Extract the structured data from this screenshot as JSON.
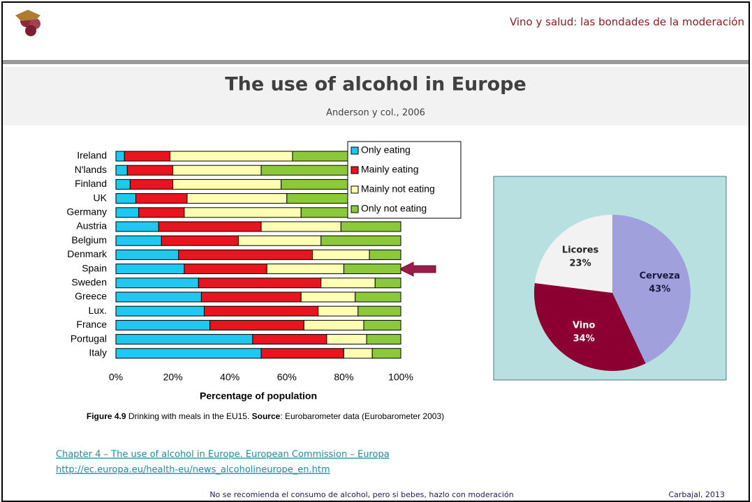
{
  "header": {
    "title": "Vino y salud: las bondades de la moderación"
  },
  "title": "The use of alcohol in Europe",
  "subtitle": "Anderson y col., 2006",
  "chart_data": [
    {
      "type": "bar",
      "orientation": "horizontal",
      "stacked": true,
      "categories": [
        "Ireland",
        "N'lands",
        "Finland",
        "UK",
        "Germany",
        "Austria",
        "Belgium",
        "Denmark",
        "Spain",
        "Sweden",
        "Greece",
        "Lux.",
        "France",
        "Portugal",
        "Italy"
      ],
      "series": [
        {
          "name": "Only eating",
          "color": "#1ec8f0",
          "values": [
            3,
            4,
            5,
            7,
            8,
            15,
            16,
            22,
            24,
            29,
            30,
            31,
            33,
            48,
            51
          ]
        },
        {
          "name": "Mainly eating",
          "color": "#e8141e",
          "values": [
            16,
            16,
            15,
            18,
            16,
            36,
            27,
            47,
            29,
            43,
            35,
            40,
            33,
            26,
            29
          ]
        },
        {
          "name": "Mainly not eating",
          "color": "#ffffb4",
          "values": [
            43,
            31,
            38,
            35,
            41,
            28,
            29,
            20,
            27,
            19,
            19,
            14,
            21,
            14,
            10
          ]
        },
        {
          "name": "Only not eating",
          "color": "#8cc83c",
          "values": [
            38,
            49,
            42,
            40,
            35,
            21,
            28,
            11,
            20,
            9,
            16,
            15,
            13,
            12,
            10
          ]
        }
      ],
      "xlim": [
        0,
        100
      ],
      "xticks": [
        {
          "value": 0,
          "label": "0%"
        },
        {
          "value": 20,
          "label": "20%"
        },
        {
          "value": 40,
          "label": "40%"
        },
        {
          "value": 60,
          "label": "60%"
        },
        {
          "value": 80,
          "label": "80%"
        },
        {
          "value": 100,
          "label": "100%"
        }
      ],
      "xlabel": "Percentage of population",
      "legend": "top-right"
    },
    {
      "type": "pie",
      "categories": [
        "Cerveza",
        "Vino",
        "Licores"
      ],
      "values": [
        43,
        34,
        23
      ],
      "value_labels": [
        "43%",
        "34%",
        "23%"
      ],
      "colors": [
        "#a0a0dc",
        "#8b0030",
        "#f2f2f2"
      ],
      "label_colors": [
        "#1a1a40",
        "#ffffff",
        "#222222"
      ]
    }
  ],
  "caption": {
    "label": "Figure 4.9",
    "text": " Drinking with meals in the EU15. ",
    "source_label": "Source",
    "source_text": ": Eurobarometer data (Eurobarometer 2003)"
  },
  "links": [
    "Chapter 4 – The use of alcohol in Europe. European Commission – Europa",
    "http://ec.europa.eu/health-eu/news_alcoholineurope_en.htm"
  ],
  "footer": {
    "note": "No se recomienda el consumo de alcohol, pero si bebes, hazlo con moderación",
    "credit": "Carbajal, 2013"
  }
}
